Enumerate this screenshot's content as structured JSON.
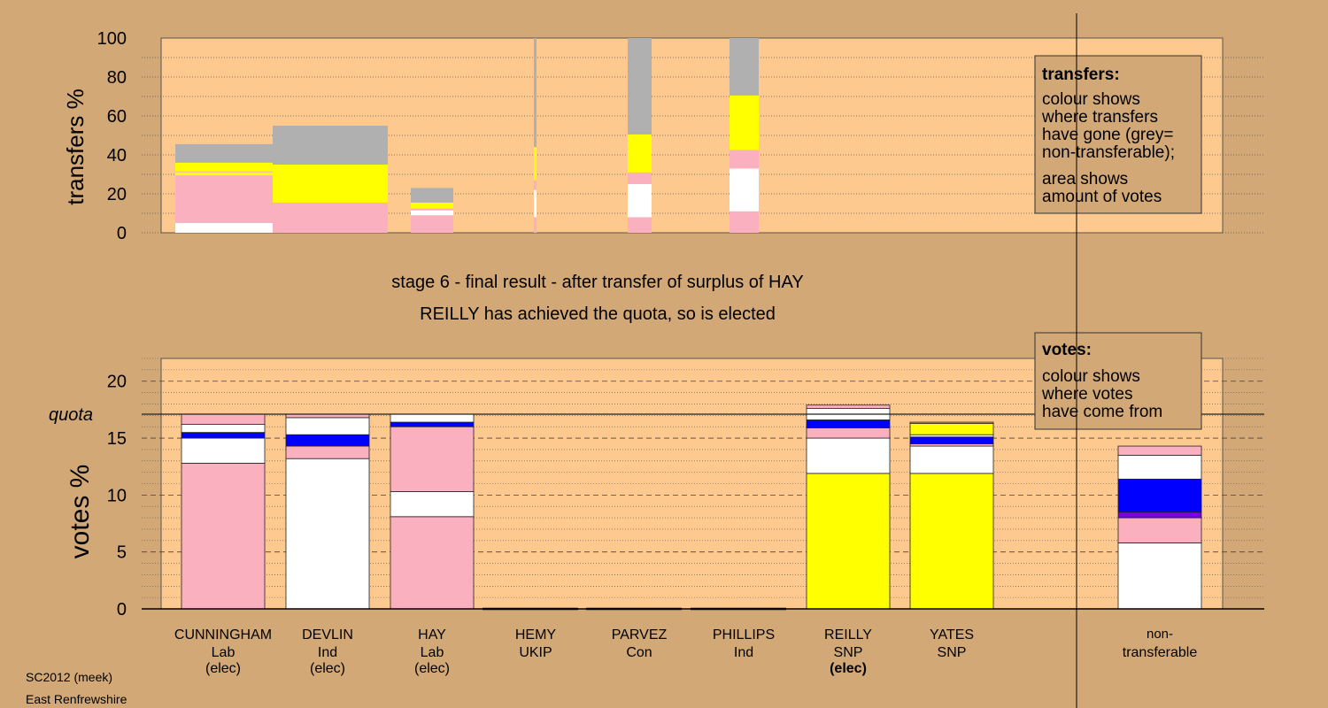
{
  "chart_data": [
    {
      "type": "bar",
      "ylabel": "transfers %",
      "ylim": [
        0,
        100
      ],
      "yticks": [
        0,
        20,
        40,
        60,
        80,
        100
      ],
      "legend": {
        "title": "transfers:",
        "lines": [
          "colour shows",
          "where transfers",
          "have gone (grey=",
          "non-transferable);",
          "area shows",
          "amount of votes"
        ],
        "placement": "top-right"
      },
      "bars": [
        {
          "name": "CUNNINGHAM",
          "segments": [
            {
              "color": "white",
              "value": 5
            },
            {
              "color": "pink",
              "value": 24.5
            },
            {
              "color": "yellow",
              "value": 1.5
            },
            {
              "color": "pink",
              "value": 0.5
            },
            {
              "color": "yellow",
              "value": 4.5
            },
            {
              "color": "grey",
              "value": 9.5
            }
          ]
        },
        {
          "name": "DEVLIN",
          "segments": [
            {
              "color": "pink",
              "value": 15.5
            },
            {
              "color": "yellow",
              "value": 19.5
            },
            {
              "color": "grey",
              "value": 20
            }
          ]
        },
        {
          "name": "HAY",
          "segments": [
            {
              "color": "pink",
              "value": 9
            },
            {
              "color": "white",
              "value": 2.5
            },
            {
              "color": "pink",
              "value": 1
            },
            {
              "color": "yellow",
              "value": 3
            },
            {
              "color": "grey",
              "value": 7.5
            }
          ]
        },
        {
          "name": "HEMY",
          "segments": [
            {
              "color": "pink",
              "value": 8
            },
            {
              "color": "white",
              "value": 14
            },
            {
              "color": "pink",
              "value": 5
            },
            {
              "color": "yellow",
              "value": 17
            },
            {
              "color": "grey",
              "value": 56
            }
          ]
        },
        {
          "name": "PARVEZ",
          "segments": [
            {
              "color": "pink",
              "value": 8
            },
            {
              "color": "white",
              "value": 17
            },
            {
              "color": "pink",
              "value": 6
            },
            {
              "color": "yellow",
              "value": 19.5
            },
            {
              "color": "grey",
              "value": 49.5
            }
          ]
        },
        {
          "name": "PHILLIPS",
          "segments": [
            {
              "color": "pink",
              "value": 11
            },
            {
              "color": "white",
              "value": 22
            },
            {
              "color": "pink",
              "value": 9.5
            },
            {
              "color": "yellow",
              "value": 28
            },
            {
              "color": "grey",
              "value": 29.5
            }
          ]
        }
      ]
    },
    {
      "type": "bar",
      "title": "stage 6 - final result - after transfer of surplus of HAY",
      "subtitle": "REILLY has achieved the quota, so is elected",
      "ylabel": "votes %",
      "ylim": [
        0,
        22
      ],
      "yticks": [
        0,
        5,
        10,
        15,
        20
      ],
      "quota": 17.1,
      "quota_label": "quota",
      "legend": {
        "title": "votes:",
        "lines": [
          "colour shows",
          "where votes",
          "have come from"
        ],
        "placement": "top-right"
      },
      "candidates": [
        {
          "name": "CUNNINGHAM",
          "party": "Lab",
          "status": "(elec)",
          "segments": [
            {
              "color": "pink",
              "value": 12.8
            },
            {
              "color": "white",
              "value": 2.2
            },
            {
              "color": "blue",
              "value": 0.5
            },
            {
              "color": "white",
              "value": 0.7
            },
            {
              "color": "pink",
              "value": 0.9
            }
          ]
        },
        {
          "name": "DEVLIN",
          "party": "Ind",
          "status": "(elec)",
          "segments": [
            {
              "color": "white",
              "value": 13.2
            },
            {
              "color": "pink",
              "value": 1.1
            },
            {
              "color": "blue",
              "value": 1.0
            },
            {
              "color": "white",
              "value": 1.5
            },
            {
              "color": "pink",
              "value": 0.3
            }
          ]
        },
        {
          "name": "HAY",
          "party": "Lab",
          "status": "(elec)",
          "segments": [
            {
              "color": "pink",
              "value": 8.1
            },
            {
              "color": "white",
              "value": 2.2
            },
            {
              "color": "pink",
              "value": 5.7
            },
            {
              "color": "blue",
              "value": 0.4
            },
            {
              "color": "white",
              "value": 0.7
            }
          ]
        },
        {
          "name": "HEMY",
          "party": "UKIP",
          "status": "",
          "segments": []
        },
        {
          "name": "PARVEZ",
          "party": "Con",
          "status": "",
          "segments": []
        },
        {
          "name": "PHILLIPS",
          "party": "Ind",
          "status": "",
          "segments": []
        },
        {
          "name": "REILLY",
          "party": "SNP",
          "status": "(elec)",
          "segments": [
            {
              "color": "yellow",
              "value": 11.9
            },
            {
              "color": "white",
              "value": 3.1
            },
            {
              "color": "pink",
              "value": 0.9
            },
            {
              "color": "blue",
              "value": 0.7
            },
            {
              "color": "white",
              "value": 1.0
            },
            {
              "color": "pink",
              "value": 0.3
            }
          ]
        },
        {
          "name": "YATES",
          "party": "SNP",
          "status": "",
          "segments": [
            {
              "color": "yellow",
              "value": 11.9
            },
            {
              "color": "white",
              "value": 2.4
            },
            {
              "color": "pink",
              "value": 0.2
            },
            {
              "color": "blue",
              "value": 0.6
            },
            {
              "color": "white",
              "value": 0.2
            },
            {
              "color": "yellow",
              "value": 1.0
            },
            {
              "color": "pink",
              "value": 0.1
            }
          ]
        },
        {
          "name": "non-transferable",
          "party": "",
          "status": "",
          "segments": [
            {
              "color": "white",
              "value": 5.8
            },
            {
              "color": "pink",
              "value": 2.2
            },
            {
              "color": "purple",
              "value": 0.5
            },
            {
              "color": "blue",
              "value": 2.9
            },
            {
              "color": "white",
              "value": 2.1
            },
            {
              "color": "pink",
              "value": 0.8
            }
          ]
        }
      ]
    }
  ],
  "colors": {
    "background": "#d2a877",
    "plot_bg": "#fec98e",
    "pink": "#fbb0c0",
    "white": "#ffffff",
    "yellow": "#ffff00",
    "blue": "#0000ff",
    "purple": "#7b00e0",
    "grey": "#b0b0b0"
  },
  "footer": {
    "source": "SC2012 (meek)",
    "region": "East Renfrewshire"
  }
}
